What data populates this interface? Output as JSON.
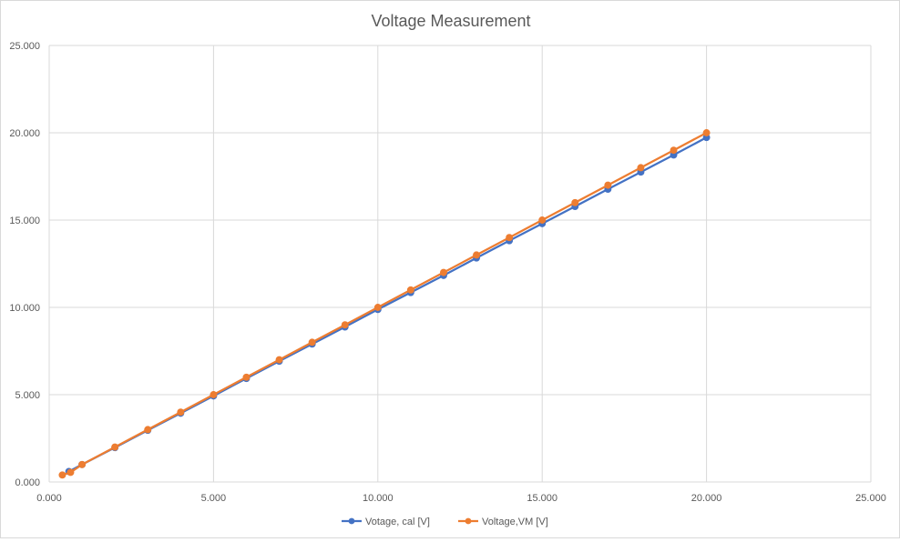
{
  "chart_data": {
    "type": "scatter",
    "title": "Voltage Measurement",
    "xlabel": "",
    "ylabel": "",
    "xlim": [
      0,
      25
    ],
    "ylim": [
      0,
      25
    ],
    "x_ticks": [
      "0.000",
      "5.000",
      "10.000",
      "15.000",
      "20.000",
      "25.000"
    ],
    "y_ticks": [
      "0.000",
      "5.000",
      "10.000",
      "15.000",
      "20.000",
      "25.000"
    ],
    "grid": true,
    "legend_position": "bottom",
    "series": [
      {
        "name": "Votage, cal [V]",
        "color": "#4472C4",
        "points": [
          [
            0.6,
            0.6
          ],
          [
            1.0,
            1.0
          ],
          [
            2.0,
            1.97
          ],
          [
            3.0,
            2.96
          ],
          [
            4.0,
            3.94
          ],
          [
            5.0,
            4.93
          ],
          [
            6.0,
            5.93
          ],
          [
            7.0,
            6.92
          ],
          [
            8.0,
            7.9
          ],
          [
            9.0,
            8.88
          ],
          [
            10.0,
            9.88
          ],
          [
            11.0,
            10.85
          ],
          [
            12.0,
            11.83
          ],
          [
            13.0,
            12.83
          ],
          [
            14.0,
            13.82
          ],
          [
            15.0,
            14.8
          ],
          [
            16.0,
            15.78
          ],
          [
            17.0,
            16.77
          ],
          [
            18.0,
            17.75
          ],
          [
            19.0,
            18.73
          ],
          [
            20.0,
            19.73
          ]
        ]
      },
      {
        "name": "Voltage,VM [V]",
        "color": "#ED7D31",
        "points": [
          [
            0.4,
            0.4
          ],
          [
            0.65,
            0.55
          ],
          [
            1.0,
            1.0
          ],
          [
            2.0,
            2.0
          ],
          [
            3.0,
            3.0
          ],
          [
            4.0,
            4.0
          ],
          [
            5.0,
            5.0
          ],
          [
            6.0,
            6.0
          ],
          [
            7.0,
            7.0
          ],
          [
            8.0,
            8.0
          ],
          [
            9.0,
            9.0
          ],
          [
            10.0,
            10.0
          ],
          [
            11.0,
            11.0
          ],
          [
            12.0,
            12.0
          ],
          [
            13.0,
            13.0
          ],
          [
            14.0,
            14.0
          ],
          [
            15.0,
            15.0
          ],
          [
            16.0,
            16.0
          ],
          [
            17.0,
            17.0
          ],
          [
            18.0,
            18.0
          ],
          [
            19.0,
            19.0
          ],
          [
            20.0,
            20.0
          ]
        ]
      }
    ]
  }
}
